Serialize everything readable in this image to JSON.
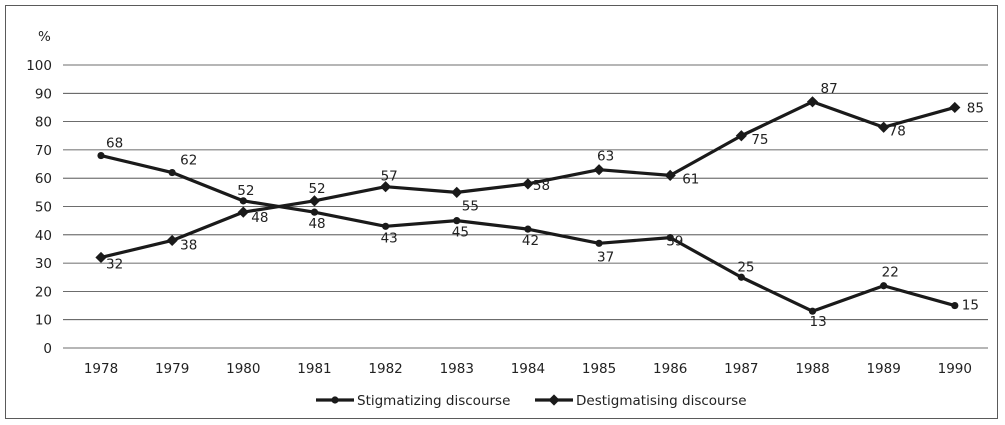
{
  "chart_data": {
    "type": "line",
    "title": "",
    "xlabel": "",
    "ylabel": "%",
    "ylim": [
      0,
      100
    ],
    "yticks": [
      0,
      10,
      20,
      30,
      40,
      50,
      60,
      70,
      80,
      90,
      100
    ],
    "grid": "horizontal",
    "legend": "bottom-center",
    "categories": [
      "1978",
      "1979",
      "1980",
      "1981",
      "1982",
      "1983",
      "1984",
      "1985",
      "1986",
      "1987",
      "1988",
      "1989",
      "1990"
    ],
    "series": [
      {
        "name": "Stigmatizing discourse",
        "marker": "circle",
        "color": "#1a1a1a",
        "values": [
          68,
          62,
          52,
          48,
          43,
          45,
          42,
          37,
          39,
          25,
          13,
          22,
          15
        ]
      },
      {
        "name": "Destigmatising discourse",
        "marker": "diamond",
        "color": "#1a1a1a",
        "values": [
          32,
          38,
          48,
          52,
          57,
          55,
          58,
          63,
          61,
          75,
          87,
          78,
          85
        ]
      }
    ]
  }
}
